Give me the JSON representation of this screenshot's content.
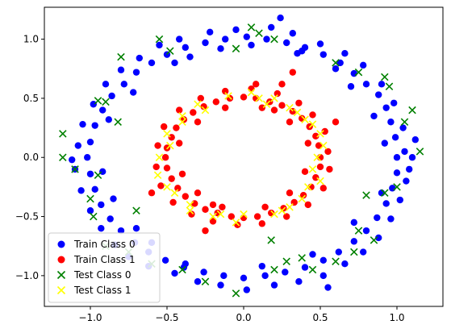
{
  "chart_data": {
    "type": "scatter",
    "title": "",
    "xlabel": "",
    "ylabel": "",
    "xlim": [
      -1.3,
      1.3
    ],
    "ylim": [
      -1.26,
      1.27
    ],
    "xticks": [
      -1.0,
      -0.5,
      0.0,
      0.5,
      1.0
    ],
    "xtick_labels": [
      "−1.0",
      "−0.5",
      "0.0",
      "0.5",
      "1.0"
    ],
    "yticks": [
      -1.0,
      -0.5,
      0.0,
      0.5,
      1.0
    ],
    "ytick_labels": [
      "−1.0",
      "−0.5",
      "0.0",
      "0.5",
      "1.0"
    ],
    "grid": false,
    "legend_position": "lower-left",
    "series": [
      {
        "name": "Train Class 0",
        "marker": "circle",
        "color": "#0000ff",
        "points": [
          [
            1.0,
            0.0
          ],
          [
            0.99,
            0.17
          ],
          [
            0.96,
            0.3
          ],
          [
            0.93,
            0.42
          ],
          [
            0.88,
            0.53
          ],
          [
            0.8,
            0.62
          ],
          [
            0.72,
            0.71
          ],
          [
            0.63,
            0.8
          ],
          [
            0.52,
            0.87
          ],
          [
            0.4,
            0.93
          ],
          [
            0.28,
            0.97
          ],
          [
            0.15,
            1.0
          ],
          [
            0.02,
            1.02
          ],
          [
            -0.12,
            1.0
          ],
          [
            -0.25,
            0.97
          ],
          [
            -0.38,
            0.93
          ],
          [
            -0.5,
            0.87
          ],
          [
            -0.6,
            0.8
          ],
          [
            -0.7,
            0.72
          ],
          [
            -0.78,
            0.62
          ],
          [
            -0.86,
            0.52
          ],
          [
            -0.92,
            0.4
          ],
          [
            -0.97,
            0.27
          ],
          [
            -1.0,
            0.13
          ],
          [
            -1.02,
            0.0
          ],
          [
            -1.0,
            -0.14
          ],
          [
            -0.97,
            -0.27
          ],
          [
            -0.93,
            -0.4
          ],
          [
            -0.87,
            -0.52
          ],
          [
            -0.8,
            -0.62
          ],
          [
            -0.71,
            -0.72
          ],
          [
            -0.62,
            -0.8
          ],
          [
            -0.51,
            -0.87
          ],
          [
            -0.39,
            -0.93
          ],
          [
            -0.26,
            -0.97
          ],
          [
            -0.13,
            -1.0
          ],
          [
            0.0,
            -1.02
          ],
          [
            0.14,
            -1.0
          ],
          [
            0.27,
            -0.97
          ],
          [
            0.4,
            -0.93
          ],
          [
            0.52,
            -0.87
          ],
          [
            0.62,
            -0.8
          ],
          [
            0.72,
            -0.71
          ],
          [
            0.8,
            -0.62
          ],
          [
            0.87,
            -0.51
          ],
          [
            0.93,
            -0.39
          ],
          [
            0.97,
            -0.26
          ],
          [
            1.0,
            -0.13
          ],
          [
            1.05,
            0.05
          ],
          [
            1.08,
            -0.1
          ],
          [
            1.04,
            0.25
          ],
          [
            0.98,
            0.46
          ],
          [
            0.9,
            0.62
          ],
          [
            0.78,
            0.78
          ],
          [
            0.66,
            0.88
          ],
          [
            0.5,
            0.96
          ],
          [
            0.32,
            1.05
          ],
          [
            0.18,
            1.1
          ],
          [
            0.24,
            1.18
          ],
          [
            -0.05,
            1.08
          ],
          [
            -0.22,
            1.06
          ],
          [
            -0.42,
            1.0
          ],
          [
            -0.55,
            0.95
          ],
          [
            -0.68,
            0.84
          ],
          [
            -0.8,
            0.74
          ],
          [
            -0.9,
            0.62
          ],
          [
            -0.98,
            0.45
          ],
          [
            -1.05,
            0.28
          ],
          [
            -1.08,
            0.1
          ],
          [
            -1.1,
            -0.1
          ],
          [
            -1.06,
            -0.28
          ],
          [
            -1.0,
            -0.45
          ],
          [
            -0.93,
            -0.6
          ],
          [
            -0.84,
            -0.74
          ],
          [
            -0.75,
            -0.84
          ],
          [
            -0.62,
            -0.92
          ],
          [
            -0.45,
            -0.98
          ],
          [
            -0.3,
            -1.05
          ],
          [
            -0.15,
            -1.08
          ],
          [
            0.02,
            -1.12
          ],
          [
            0.2,
            -1.08
          ],
          [
            0.36,
            -1.05
          ],
          [
            0.52,
            -1.0
          ],
          [
            0.66,
            -0.9
          ],
          [
            0.78,
            -0.8
          ],
          [
            0.88,
            -0.68
          ],
          [
            0.96,
            -0.52
          ],
          [
            1.02,
            -0.36
          ],
          [
            1.06,
            -0.2
          ],
          [
            1.1,
            0.0
          ],
          [
            0.55,
            -1.1
          ],
          [
            -0.35,
            0.85
          ],
          [
            0.35,
            0.88
          ],
          [
            0.85,
            0.35
          ],
          [
            -0.85,
            -0.35
          ],
          [
            -0.88,
            0.32
          ],
          [
            0.9,
            -0.3
          ],
          [
            -0.6,
            -0.72
          ],
          [
            0.6,
            0.75
          ],
          [
            -0.45,
            0.8
          ],
          [
            0.45,
            -0.82
          ],
          [
            -0.15,
            0.92
          ],
          [
            0.12,
            -0.92
          ],
          [
            0.92,
            0.12
          ],
          [
            -0.92,
            -0.12
          ],
          [
            -0.72,
            0.55
          ],
          [
            0.72,
            -0.55
          ],
          [
            0.7,
            0.6
          ],
          [
            -0.7,
            -0.6
          ],
          [
            -0.38,
            -0.9
          ],
          [
            0.38,
            0.9
          ],
          [
            1.12,
            0.15
          ],
          [
            -1.12,
            -0.02
          ],
          [
            0.05,
            0.95
          ]
        ]
      },
      {
        "name": "Train Class 1",
        "marker": "circle",
        "color": "#ff0000",
        "points": [
          [
            0.5,
            0.0
          ],
          [
            0.49,
            0.1
          ],
          [
            0.47,
            0.18
          ],
          [
            0.43,
            0.26
          ],
          [
            0.38,
            0.33
          ],
          [
            0.32,
            0.39
          ],
          [
            0.25,
            0.44
          ],
          [
            0.17,
            0.47
          ],
          [
            0.08,
            0.5
          ],
          [
            0.0,
            0.51
          ],
          [
            -0.09,
            0.5
          ],
          [
            -0.18,
            0.47
          ],
          [
            -0.26,
            0.43
          ],
          [
            -0.33,
            0.38
          ],
          [
            -0.39,
            0.32
          ],
          [
            -0.44,
            0.25
          ],
          [
            -0.47,
            0.17
          ],
          [
            -0.5,
            0.08
          ],
          [
            -0.51,
            0.0
          ],
          [
            -0.5,
            -0.09
          ],
          [
            -0.47,
            -0.18
          ],
          [
            -0.43,
            -0.26
          ],
          [
            -0.38,
            -0.33
          ],
          [
            -0.32,
            -0.39
          ],
          [
            -0.25,
            -0.44
          ],
          [
            -0.17,
            -0.47
          ],
          [
            -0.08,
            -0.5
          ],
          [
            0.0,
            -0.51
          ],
          [
            0.09,
            -0.5
          ],
          [
            0.18,
            -0.47
          ],
          [
            0.26,
            -0.43
          ],
          [
            0.33,
            -0.38
          ],
          [
            0.39,
            -0.32
          ],
          [
            0.44,
            -0.25
          ],
          [
            0.47,
            -0.17
          ],
          [
            0.5,
            -0.08
          ],
          [
            0.55,
            0.05
          ],
          [
            0.53,
            0.22
          ],
          [
            0.45,
            0.36
          ],
          [
            0.36,
            0.46
          ],
          [
            0.22,
            0.54
          ],
          [
            0.05,
            0.58
          ],
          [
            -0.12,
            0.56
          ],
          [
            -0.28,
            0.5
          ],
          [
            -0.42,
            0.4
          ],
          [
            -0.52,
            0.26
          ],
          [
            -0.56,
            0.1
          ],
          [
            -0.57,
            -0.08
          ],
          [
            -0.54,
            -0.24
          ],
          [
            -0.46,
            -0.38
          ],
          [
            -0.34,
            -0.48
          ],
          [
            -0.2,
            -0.54
          ],
          [
            -0.04,
            -0.57
          ],
          [
            0.12,
            -0.56
          ],
          [
            0.28,
            -0.5
          ],
          [
            0.42,
            -0.4
          ],
          [
            0.52,
            -0.26
          ],
          [
            0.56,
            -0.1
          ],
          [
            0.42,
            0.12
          ],
          [
            0.4,
            -0.12
          ],
          [
            -0.42,
            0.12
          ],
          [
            -0.4,
            -0.14
          ],
          [
            0.12,
            0.42
          ],
          [
            -0.12,
            0.42
          ],
          [
            0.14,
            -0.42
          ],
          [
            -0.14,
            -0.42
          ],
          [
            0.3,
            0.3
          ],
          [
            -0.3,
            0.3
          ],
          [
            0.3,
            -0.3
          ],
          [
            -0.3,
            -0.3
          ],
          [
            0.6,
            0.3
          ],
          [
            -0.6,
            -0.3
          ],
          [
            0.25,
            0.62
          ],
          [
            -0.25,
            -0.62
          ],
          [
            0.32,
            0.72
          ],
          [
            0.08,
            0.62
          ],
          [
            -0.2,
            -0.4
          ],
          [
            0.2,
            0.4
          ]
        ]
      },
      {
        "name": "Test Class 0",
        "marker": "x",
        "color": "#008000",
        "points": [
          [
            -1.18,
            0.2
          ],
          [
            -1.18,
            0.0
          ],
          [
            -0.95,
            0.48
          ],
          [
            -0.9,
            0.47
          ],
          [
            -0.82,
            0.3
          ],
          [
            -0.8,
            0.85
          ],
          [
            -0.55,
            1.0
          ],
          [
            -0.48,
            0.9
          ],
          [
            0.05,
            1.1
          ],
          [
            0.1,
            1.05
          ],
          [
            0.2,
            1.0
          ],
          [
            -0.05,
            0.92
          ],
          [
            0.6,
            0.8
          ],
          [
            0.75,
            0.72
          ],
          [
            0.92,
            0.68
          ],
          [
            0.95,
            0.6
          ],
          [
            1.05,
            0.3
          ],
          [
            1.1,
            0.4
          ],
          [
            1.15,
            0.05
          ],
          [
            1.0,
            -0.25
          ],
          [
            0.92,
            -0.3
          ],
          [
            0.8,
            -0.32
          ],
          [
            0.75,
            -0.62
          ],
          [
            0.72,
            -0.8
          ],
          [
            0.6,
            -0.88
          ],
          [
            0.45,
            -0.95
          ],
          [
            0.28,
            -0.88
          ],
          [
            0.2,
            -0.95
          ],
          [
            -0.05,
            -1.15
          ],
          [
            -0.25,
            -1.05
          ],
          [
            -0.4,
            -0.95
          ],
          [
            -0.6,
            -0.9
          ],
          [
            -0.75,
            -0.8
          ],
          [
            -0.9,
            -0.75
          ],
          [
            -0.98,
            -0.5
          ],
          [
            -1.0,
            -0.35
          ],
          [
            -1.1,
            -0.1
          ],
          [
            -0.95,
            -0.15
          ],
          [
            0.38,
            -0.85
          ],
          [
            0.85,
            -0.7
          ],
          [
            0.18,
            -0.7
          ],
          [
            -0.7,
            -0.45
          ]
        ]
      },
      {
        "name": "Test Class 1",
        "marker": "x",
        "color": "#ffff00",
        "points": [
          [
            -0.55,
            0.0
          ],
          [
            -0.56,
            -0.15
          ],
          [
            -0.5,
            0.2
          ],
          [
            -0.45,
            -0.3
          ],
          [
            -0.4,
            0.35
          ],
          [
            -0.35,
            -0.4
          ],
          [
            -0.3,
            0.45
          ],
          [
            -0.2,
            -0.5
          ],
          [
            -0.1,
            0.52
          ],
          [
            0.0,
            -0.48
          ],
          [
            0.1,
            0.5
          ],
          [
            0.2,
            -0.48
          ],
          [
            0.3,
            0.42
          ],
          [
            0.38,
            -0.35
          ],
          [
            0.45,
            0.28
          ],
          [
            0.5,
            -0.2
          ],
          [
            0.52,
            0.1
          ],
          [
            0.48,
            0.0
          ],
          [
            0.3,
            -0.42
          ],
          [
            0.2,
            0.5
          ],
          [
            -0.25,
            0.4
          ],
          [
            -0.48,
            0.1
          ],
          [
            -0.5,
            -0.25
          ],
          [
            0.4,
            0.32
          ],
          [
            0.42,
            -0.25
          ],
          [
            -0.35,
            -0.45
          ],
          [
            -0.15,
            -0.48
          ],
          [
            0.05,
            0.55
          ],
          [
            0.25,
            -0.45
          ],
          [
            0.35,
            0.38
          ],
          [
            -0.4,
            0.3
          ],
          [
            0.15,
            0.45
          ],
          [
            -0.05,
            -0.55
          ],
          [
            0.45,
            -0.1
          ],
          [
            0.5,
            0.2
          ]
        ]
      }
    ]
  }
}
